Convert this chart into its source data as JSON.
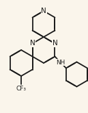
{
  "bg_color": "#faf5eb",
  "bond_color": "#1a1a1a",
  "text_color": "#1a1a1a",
  "bond_lw": 1.3,
  "dbo": 0.012,
  "fs": 7.5,
  "figsize": [
    1.29,
    1.65
  ],
  "dpi": 100,
  "xlim": [
    0.0,
    1.0
  ],
  "ylim": [
    0.0,
    1.0
  ]
}
